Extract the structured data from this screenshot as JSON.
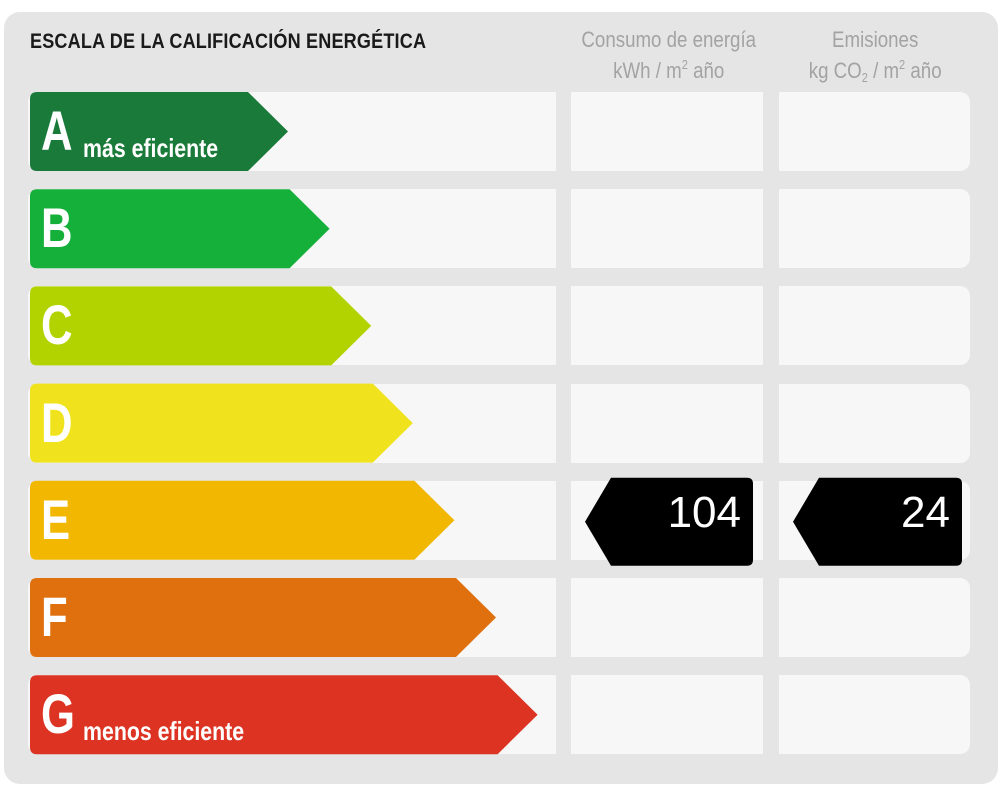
{
  "chart_data": {
    "type": "bar",
    "title": "ESCALA DE LA CALIFICACIÓN ENERGÉTICA",
    "categories": [
      "A",
      "B",
      "C",
      "D",
      "E",
      "F",
      "G"
    ],
    "colors": [
      "#1a7a3a",
      "#14b03a",
      "#b2d300",
      "#f0e31e",
      "#f2b700",
      "#e0700e",
      "#dc3322"
    ],
    "best_label": "más eficiente",
    "worst_label": "menos eficiente",
    "columns": [
      {
        "title": "Consumo de energía",
        "unit_pre": "kWh / m",
        "unit_sup": "2",
        "unit_post": " año"
      },
      {
        "title": "Emisiones",
        "unit_pre": "kg CO",
        "unit_sub": "2",
        "unit_mid": " / m",
        "unit_sup": "2",
        "unit_post": " año"
      }
    ],
    "rating": "E",
    "consumption_value": "104",
    "emissions_value": "24"
  }
}
